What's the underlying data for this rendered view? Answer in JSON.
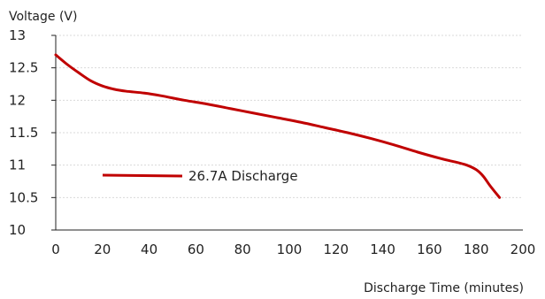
{
  "chart_data": {
    "type": "line",
    "ylabel": "Voltage (V)",
    "xlabel": "Discharge Time (minutes)",
    "xlim": [
      0,
      200
    ],
    "ylim": [
      10,
      13
    ],
    "xticks": [
      0,
      20,
      40,
      60,
      80,
      100,
      120,
      140,
      160,
      180,
      200
    ],
    "yticks": [
      10,
      10.5,
      11,
      11.5,
      12,
      12.5,
      13
    ],
    "ytick_labels": [
      "10",
      "10.5",
      "11",
      "11.5",
      "12",
      "12.5",
      "13"
    ],
    "grid": true,
    "legend_position": "lower-left",
    "series": [
      {
        "name": "26.7A Discharge",
        "color": "#c00000",
        "x": [
          0,
          5,
          10,
          15,
          20,
          25,
          30,
          38,
          45,
          55,
          65,
          75,
          85,
          95,
          105,
          115,
          125,
          135,
          145,
          155,
          165,
          172,
          176,
          180,
          183,
          186,
          190
        ],
        "y": [
          12.7,
          12.55,
          12.42,
          12.3,
          12.22,
          12.17,
          12.14,
          12.11,
          12.07,
          12.0,
          11.94,
          11.87,
          11.8,
          11.73,
          11.66,
          11.58,
          11.5,
          11.41,
          11.31,
          11.2,
          11.1,
          11.04,
          11.0,
          10.93,
          10.83,
          10.68,
          10.5
        ]
      }
    ]
  }
}
